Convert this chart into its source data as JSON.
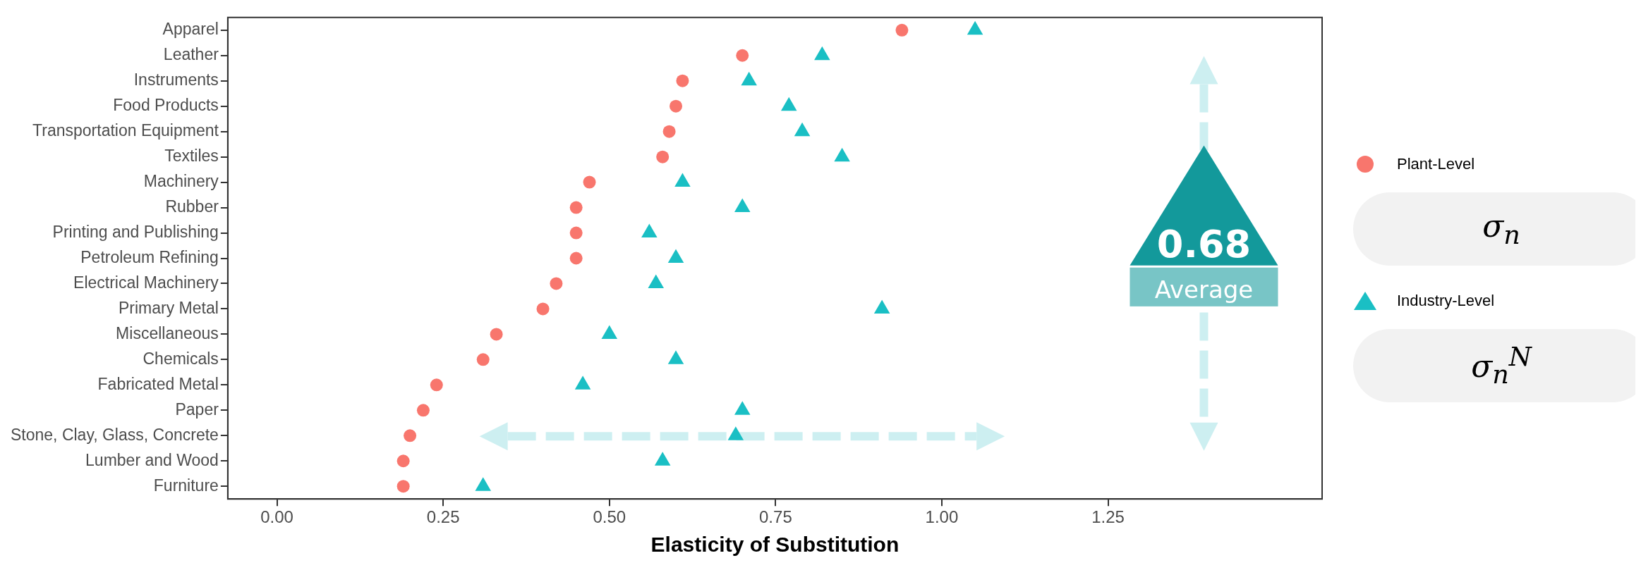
{
  "chart_data": {
    "type": "scatter",
    "xlabel": "Elasticity of Substitution",
    "categories": [
      "Apparel",
      "Leather",
      "Instruments",
      "Food Products",
      "Transportation Equipment",
      "Textiles",
      "Machinery",
      "Rubber",
      "Printing and Publishing",
      "Petroleum Refining",
      "Electrical Machinery",
      "Primary Metal",
      "Miscellaneous",
      "Chemicals",
      "Fabricated Metal",
      "Paper",
      "Stone, Clay, Glass, Concrete",
      "Lumber and Wood",
      "Furniture"
    ],
    "series": [
      {
        "name": "Plant-Level",
        "color": "#f8766d",
        "marker": "circle",
        "values": [
          0.94,
          0.7,
          0.61,
          0.6,
          0.59,
          0.58,
          0.47,
          0.45,
          0.45,
          0.45,
          0.42,
          0.4,
          0.33,
          0.31,
          0.24,
          0.22,
          0.2,
          0.19,
          0.19
        ]
      },
      {
        "name": "Industry-Level",
        "color": "#1abfc4",
        "marker": "triangle",
        "values": [
          1.05,
          0.82,
          0.71,
          0.77,
          0.79,
          0.85,
          0.61,
          0.7,
          0.56,
          0.6,
          0.57,
          0.91,
          0.5,
          0.6,
          0.46,
          0.7,
          0.69,
          0.58,
          0.31
        ]
      }
    ],
    "xlim": [
      -0.074,
      1.572
    ],
    "xticks": [
      {
        "value": 0,
        "label": "0.00"
      },
      {
        "value": 0.25,
        "label": "0.25"
      },
      {
        "value": 0.5,
        "label": "0.50"
      },
      {
        "value": 0.75,
        "label": "0.75"
      },
      {
        "value": 1,
        "label": "1.00"
      },
      {
        "value": 1.25,
        "label": "1.25"
      }
    ],
    "orientation": "horizontal",
    "grid": false,
    "legend": "right",
    "annotations": [
      "0.68",
      "Average",
      "σ$_{n}$",
      "σ$_{n}$$^{N}$"
    ]
  }
}
